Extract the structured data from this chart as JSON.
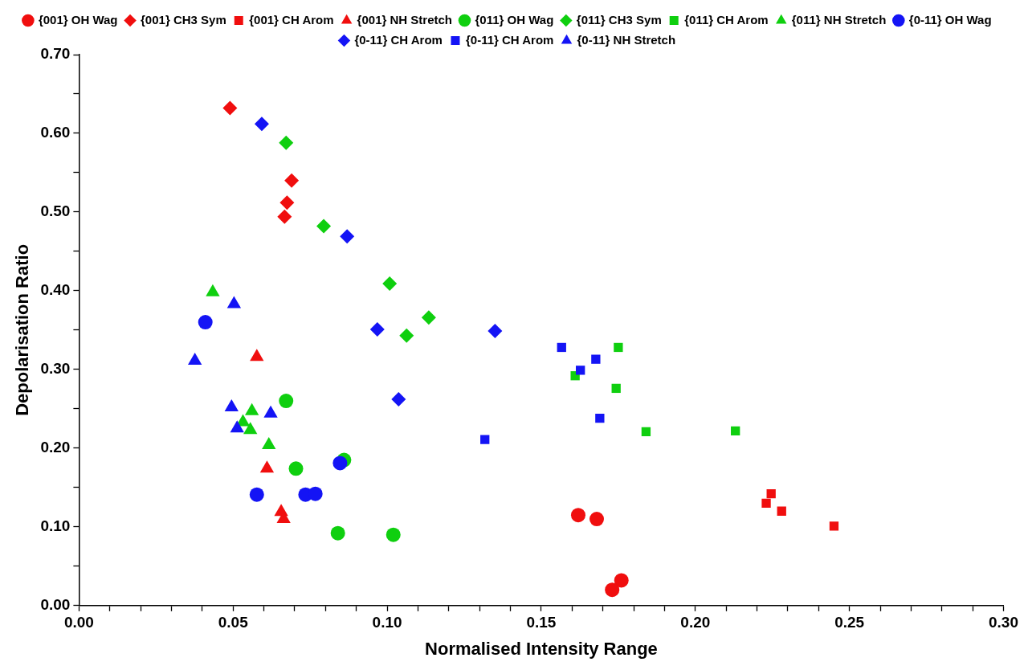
{
  "chart_data": {
    "type": "scatter",
    "xlabel": "Normalised Intensity Range",
    "ylabel": "Depolarisation Ratio",
    "legend": "top",
    "grid": false,
    "xlim": [
      0,
      0.3
    ],
    "ylim": [
      0,
      0.7
    ],
    "xticks": [
      {
        "value": 0,
        "label": "0.00"
      },
      {
        "value": 0.01,
        "label": null
      },
      {
        "value": 0.02,
        "label": null
      },
      {
        "value": 0.03,
        "label": null
      },
      {
        "value": 0.04,
        "label": null
      },
      {
        "value": 0.05,
        "label": "0.05"
      },
      {
        "value": 0.06,
        "label": null
      },
      {
        "value": 0.07,
        "label": null
      },
      {
        "value": 0.08,
        "label": null
      },
      {
        "value": 0.09,
        "label": null
      },
      {
        "value": 0.1,
        "label": "0.10"
      },
      {
        "value": 0.11,
        "label": null
      },
      {
        "value": 0.12,
        "label": null
      },
      {
        "value": 0.13,
        "label": null
      },
      {
        "value": 0.14,
        "label": null
      },
      {
        "value": 0.15,
        "label": "0.15"
      },
      {
        "value": 0.16,
        "label": null
      },
      {
        "value": 0.17,
        "label": null
      },
      {
        "value": 0.18,
        "label": null
      },
      {
        "value": 0.19,
        "label": null
      },
      {
        "value": 0.2,
        "label": "0.20"
      },
      {
        "value": 0.21,
        "label": null
      },
      {
        "value": 0.22,
        "label": null
      },
      {
        "value": 0.23,
        "label": null
      },
      {
        "value": 0.24,
        "label": null
      },
      {
        "value": 0.25,
        "label": "0.25"
      },
      {
        "value": 0.26,
        "label": null
      },
      {
        "value": 0.27,
        "label": null
      },
      {
        "value": 0.28,
        "label": null
      },
      {
        "value": 0.29,
        "label": null
      },
      {
        "value": 0.3,
        "label": "0.30"
      }
    ],
    "yticks": [
      {
        "value": 0,
        "label": "0.00"
      },
      {
        "value": 0.05,
        "label": null
      },
      {
        "value": 0.1,
        "label": "0.10"
      },
      {
        "value": 0.15,
        "label": null
      },
      {
        "value": 0.2,
        "label": "0.20"
      },
      {
        "value": 0.25,
        "label": null
      },
      {
        "value": 0.3,
        "label": "0.30"
      },
      {
        "value": 0.35,
        "label": null
      },
      {
        "value": 0.4,
        "label": "0.40"
      },
      {
        "value": 0.45,
        "label": null
      },
      {
        "value": 0.5,
        "label": "0.50"
      },
      {
        "value": 0.55,
        "label": null
      },
      {
        "value": 0.6,
        "label": "0.60"
      },
      {
        "value": 0.65,
        "label": null
      },
      {
        "value": 0.7,
        "label": "0.70"
      }
    ],
    "series": [
      {
        "name": "{001} OH Wag",
        "color": "#f00e0e",
        "marker": "circle",
        "x": [
          0.162,
          0.168,
          0.176,
          0.173
        ],
        "values": [
          0.115,
          0.11,
          0.032,
          0.02
        ]
      },
      {
        "name": "{001} CH3 Sym",
        "color": "#f00e0e",
        "marker": "diamond",
        "x": [
          0.049,
          0.069,
          0.0675,
          0.0667
        ],
        "values": [
          0.632,
          0.54,
          0.512,
          0.494
        ]
      },
      {
        "name": "{001} CH Arom",
        "color": "#f00e0e",
        "marker": "square",
        "x": [
          0.2246,
          0.223,
          0.228,
          0.245
        ],
        "values": [
          0.142,
          0.13,
          0.12,
          0.101
        ]
      },
      {
        "name": "{001} NH Stretch",
        "color": "#f00e0e",
        "marker": "triangle",
        "x": [
          0.0577,
          0.061,
          0.0656,
          0.0664
        ],
        "values": [
          0.316,
          0.174,
          0.119,
          0.11
        ]
      },
      {
        "name": "{011} OH Wag",
        "color": "#0fcf0f",
        "marker": "circle",
        "x": [
          0.0672,
          0.0704,
          0.086,
          0.084,
          0.102
        ],
        "values": [
          0.26,
          0.174,
          0.185,
          0.092,
          0.09
        ]
      },
      {
        "name": "{011} CH3 Sym",
        "color": "#0fcf0f",
        "marker": "diamond",
        "x": [
          0.0672,
          0.0794,
          0.1008,
          0.1135,
          0.1063
        ],
        "values": [
          0.588,
          0.482,
          0.409,
          0.366,
          0.343
        ]
      },
      {
        "name": "{011} CH Arom",
        "color": "#0fcf0f",
        "marker": "square",
        "x": [
          0.175,
          0.161,
          0.1743,
          0.184,
          0.213
        ],
        "values": [
          0.328,
          0.292,
          0.276,
          0.221,
          0.222
        ]
      },
      {
        "name": "{011} NH Stretch",
        "color": "#0fcf0f",
        "marker": "triangle",
        "x": [
          0.0434,
          0.0561,
          0.0532,
          0.0556,
          0.0616
        ],
        "values": [
          0.398,
          0.247,
          0.233,
          0.223,
          0.204
        ]
      },
      {
        "name": "{0-11} OH Wag",
        "color": "#1414f5",
        "marker": "circle",
        "x": [
          0.041,
          0.0577,
          0.0735,
          0.0767,
          0.0847
        ],
        "values": [
          0.36,
          0.141,
          0.141,
          0.142,
          0.181
        ]
      },
      {
        "name": "{0-11} CH Arom",
        "color": "#1414f5",
        "marker": "diamond",
        "x": [
          0.0593,
          0.087,
          0.0968,
          0.135,
          0.1037
        ],
        "values": [
          0.612,
          0.469,
          0.351,
          0.349,
          0.262
        ]
      },
      {
        "name": "{0-11} CH Arom",
        "color": "#1414f5",
        "marker": "square",
        "x": [
          0.1566,
          0.1677,
          0.1627,
          0.169,
          0.1317
        ],
        "values": [
          0.328,
          0.313,
          0.299,
          0.238,
          0.211
        ]
      },
      {
        "name": "{0-11} NH Stretch",
        "color": "#1414f5",
        "marker": "triangle",
        "x": [
          0.0503,
          0.0376,
          0.0495,
          0.0622,
          0.0513
        ],
        "values": [
          0.383,
          0.311,
          0.252,
          0.244,
          0.225
        ]
      }
    ]
  }
}
